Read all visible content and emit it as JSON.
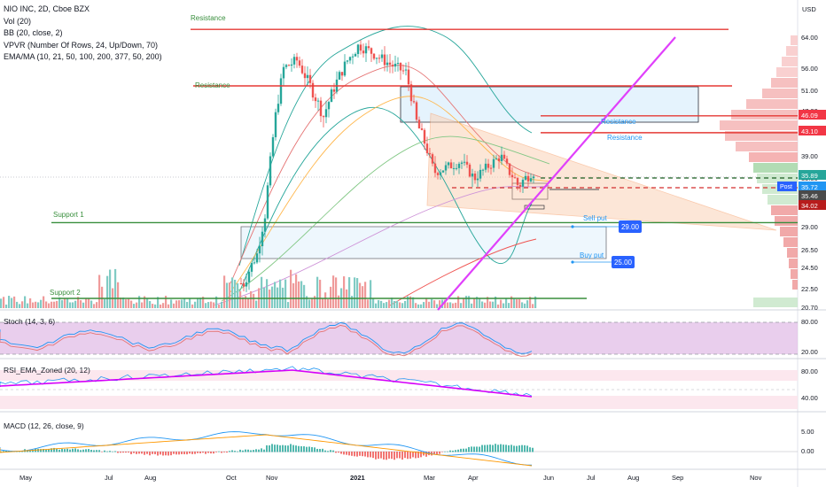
{
  "legend": {
    "title": "NIO INC, 2D, Cboe BZX",
    "vol": "Vol (20)",
    "bb": "BB (20, close, 2)",
    "vpvr": "VPVR (Number Of Rows, 24, Up/Down, 70)",
    "ema": "EMA/MA (10, 21, 50, 100, 200, 377, 50, 200)"
  },
  "currency": "USD",
  "panes": {
    "stoch": "Stoch (14, 3, 6)",
    "rsi": "RSI_EMA_Zoned (20, 12)",
    "macd": "MACD (12, 26, close, 9)"
  },
  "annotations": {
    "resistance_top": "Resistance",
    "resistance_mid": "Resistance",
    "resistance_box": "Resistance",
    "resistance_right": "Resistance",
    "support1": "Support 1",
    "support2": "Support 2",
    "sell_put": "Sell put",
    "buy_put": "Buy put",
    "sell_put_value": "29.00",
    "buy_put_value": "25.00",
    "post_label": "Post"
  },
  "colors": {
    "up": "#26a69a",
    "down": "#ef5350",
    "resistance": "#e53935",
    "support": "#388e3c",
    "trend": "#e040fb",
    "triangle": "#f7a06b",
    "osc_fill": "#e1bee7",
    "rsi_line": "#d500f9"
  },
  "chart_data": {
    "type": "candlestick",
    "symbol": "NIO",
    "x_tick_labels": [
      "May",
      "Jul",
      "Aug",
      "Oct",
      "Nov",
      "2021",
      "Mar",
      "Apr",
      "Jun",
      "Jul",
      "Aug",
      "Sep",
      "Nov"
    ],
    "y_tick_labels": [
      "64.00",
      "56.00",
      "51.00",
      "47.00",
      "39.00",
      "35.00",
      "29.00",
      "26.50",
      "24.50",
      "22.50",
      "20.70"
    ],
    "price_tags": [
      {
        "label": "46.09",
        "value": 46.09,
        "color": "#f23645"
      },
      {
        "label": "43.10",
        "value": 43.1,
        "color": "#f23645"
      },
      {
        "label": "35.89",
        "value": 35.89,
        "color": "#26a69a"
      },
      {
        "label": "35.72",
        "value": 35.72,
        "color": "#2196f3"
      },
      {
        "label": "35.46",
        "value": 35.46,
        "color": "#4a4a4a"
      },
      {
        "label": "34.02",
        "value": 34.02,
        "color": "#b71c1c"
      }
    ],
    "levels": {
      "resistance_top": 66,
      "resistance_mid": 52,
      "support1": 29.5,
      "support2": 20.5,
      "red_line_1": 46.09,
      "red_line_2": 43.1
    },
    "stoch_ticks": [
      "80.00",
      "20.00"
    ],
    "rsi_ticks": [
      "80.00",
      "40.00"
    ],
    "macd_ticks": [
      "5.00",
      "0.00"
    ]
  }
}
